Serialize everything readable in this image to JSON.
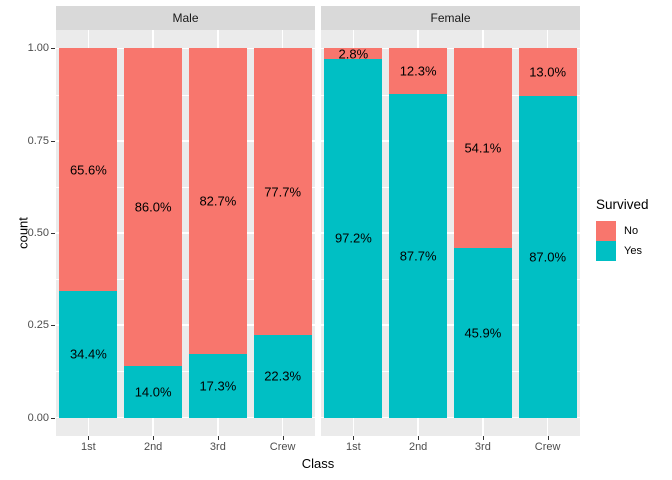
{
  "chart_data": {
    "type": "bar",
    "variant": "stacked-percent-faceted",
    "xlabel": "Class",
    "ylabel": "count",
    "categories": [
      "1st",
      "2nd",
      "3rd",
      "Crew"
    ],
    "y_ticks": [
      {
        "value": 0.0,
        "label": "0.00"
      },
      {
        "value": 0.25,
        "label": "0.25"
      },
      {
        "value": 0.5,
        "label": "0.50"
      },
      {
        "value": 0.75,
        "label": "0.75"
      },
      {
        "value": 1.0,
        "label": "1.00"
      }
    ],
    "y_minor_values": [
      0.125,
      0.375,
      0.625,
      0.875
    ],
    "ylim_expanded": [
      -0.05,
      1.05
    ],
    "grid": true,
    "facets": [
      {
        "label": "Male",
        "series": [
          {
            "name": "No",
            "color": "#F8766D",
            "values": [
              0.656,
              0.86,
              0.827,
              0.777
            ],
            "labels": [
              "65.6%",
              "86.0%",
              "82.7%",
              "77.7%"
            ]
          },
          {
            "name": "Yes",
            "color": "#00BFC4",
            "values": [
              0.344,
              0.14,
              0.173,
              0.223
            ],
            "labels": [
              "34.4%",
              "14.0%",
              "17.3%",
              "22.3%"
            ]
          }
        ]
      },
      {
        "label": "Female",
        "series": [
          {
            "name": "No",
            "color": "#F8766D",
            "values": [
              0.028,
              0.123,
              0.541,
              0.13
            ],
            "labels": [
              "2.8%",
              "12.3%",
              "54.1%",
              "13.0%"
            ]
          },
          {
            "name": "Yes",
            "color": "#00BFC4",
            "values": [
              0.972,
              0.877,
              0.459,
              0.87
            ],
            "labels": [
              "97.2%",
              "87.7%",
              "45.9%",
              "87.0%"
            ]
          }
        ]
      }
    ],
    "legend": {
      "title": "Survived",
      "position": "right",
      "entries": [
        {
          "label": "No",
          "color": "#F8766D"
        },
        {
          "label": "Yes",
          "color": "#00BFC4"
        }
      ]
    },
    "colors": {
      "panel_bg": "#EBEBEB",
      "strip_bg": "#D9D9D9",
      "grid": "#FFFFFF",
      "axis_text": "#4D4D4D",
      "strip_text": "#1A1A1A",
      "bar_label_text": "#000000",
      "no_fill": "#F8766D",
      "yes_fill": "#00BFC4"
    }
  }
}
